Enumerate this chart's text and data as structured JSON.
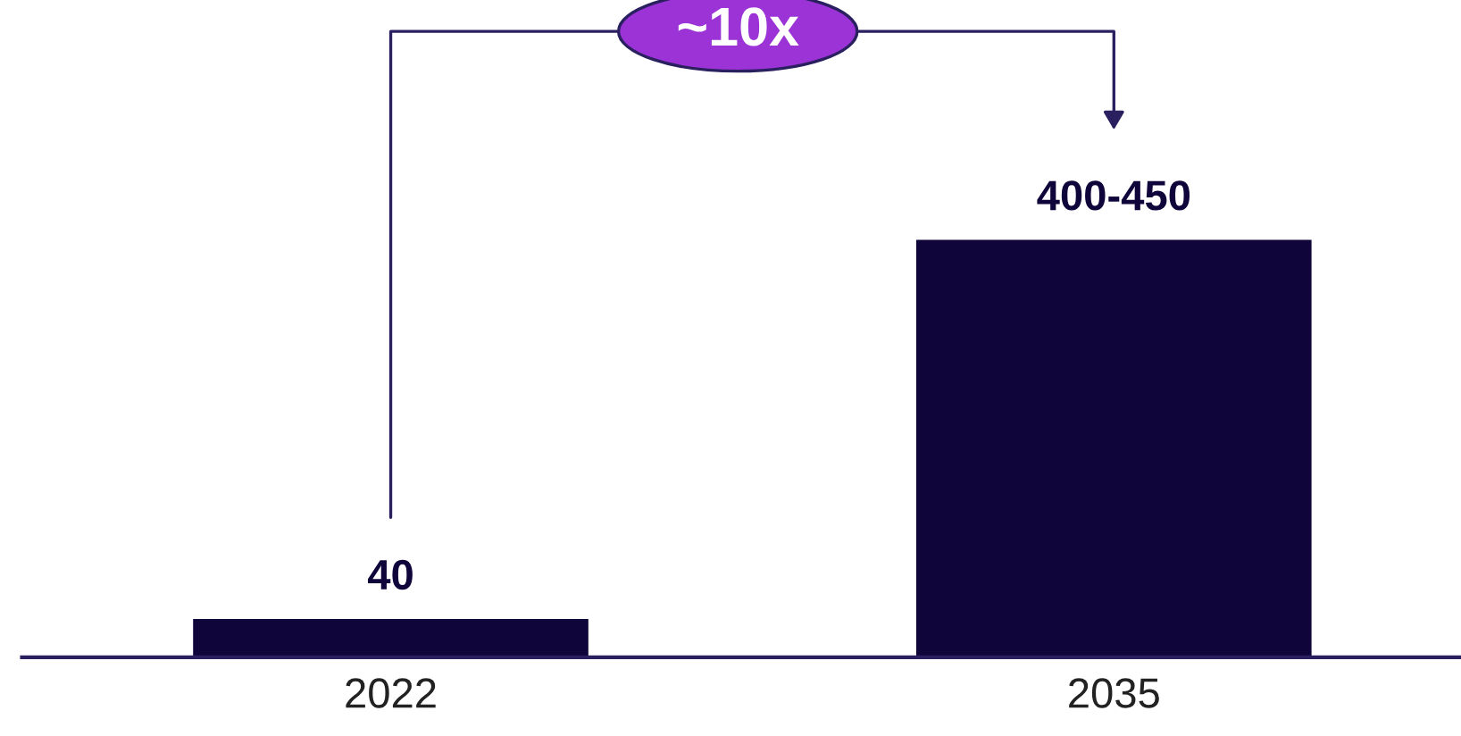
{
  "chart_data": {
    "type": "bar",
    "categories": [
      "2022",
      "2035"
    ],
    "values": [
      40,
      425
    ],
    "value_labels": [
      "40",
      "400-450"
    ],
    "color": "#10053b",
    "annotations": [
      "~10x"
    ]
  }
}
